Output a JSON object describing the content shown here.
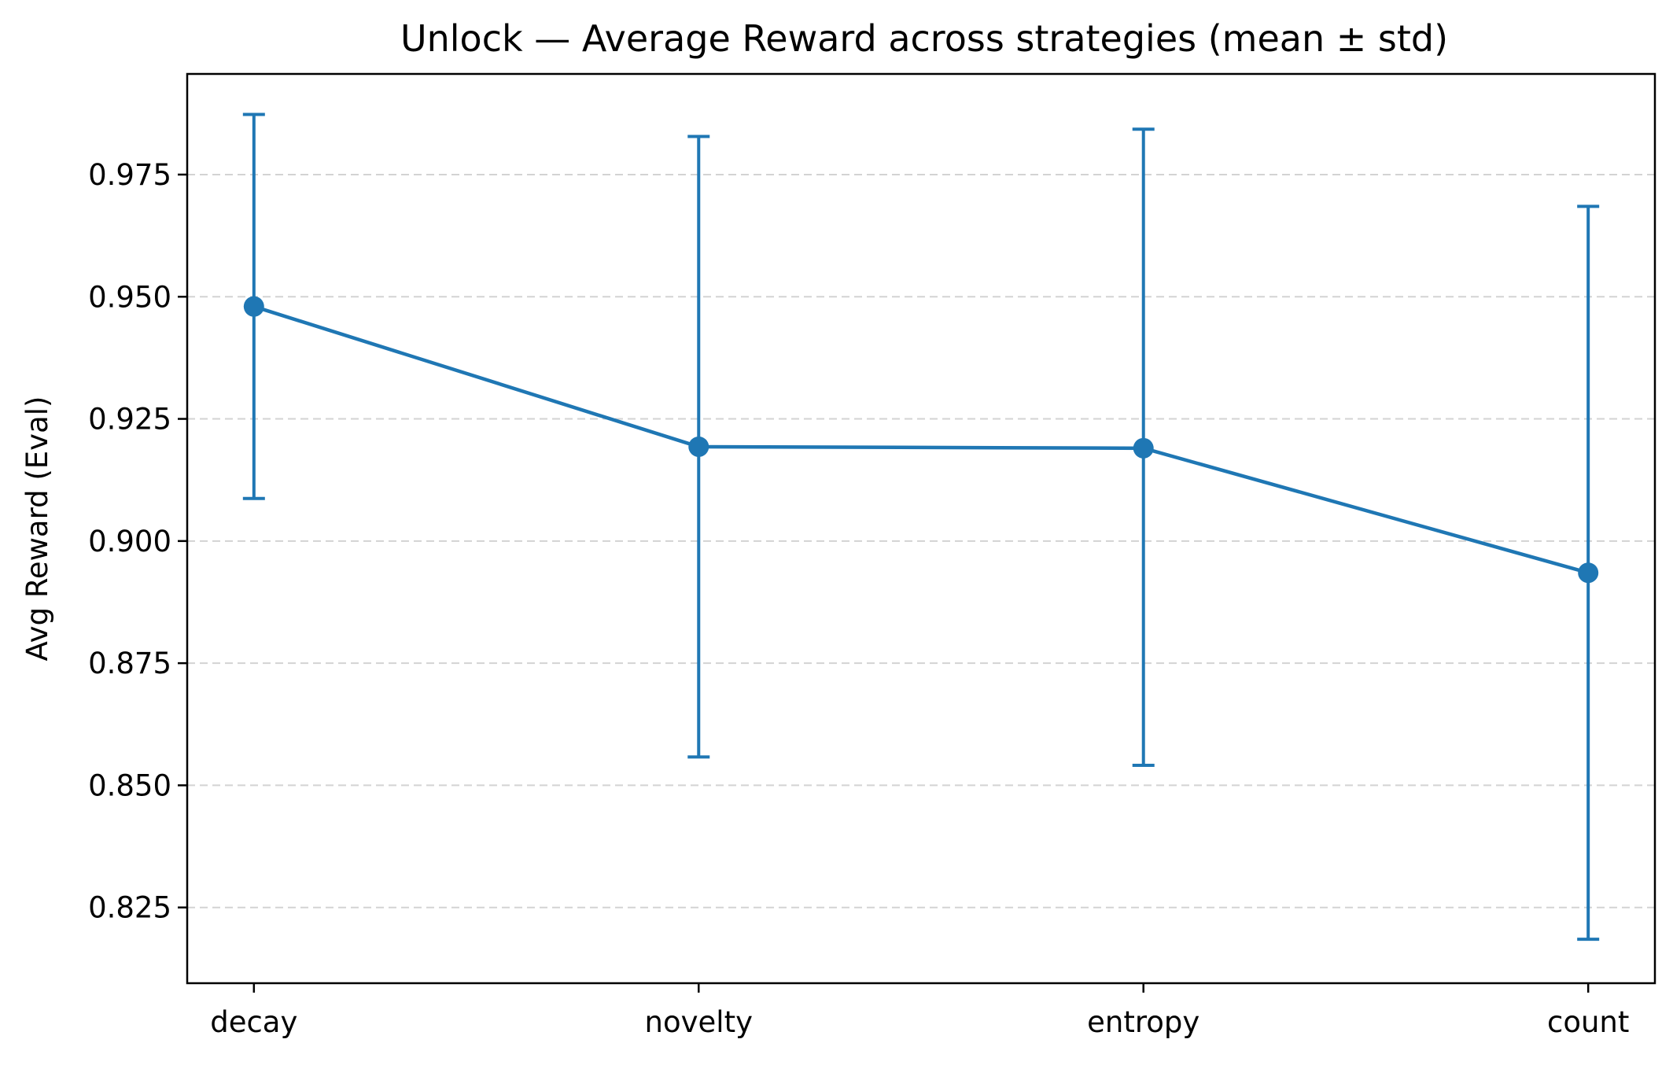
{
  "chart_data": {
    "type": "line",
    "title": "Unlock — Average Reward across strategies (mean ± std)",
    "xlabel": "",
    "ylabel": "Avg Reward (Eval)",
    "categories": [
      "decay",
      "novelty",
      "entropy",
      "count"
    ],
    "series": [
      {
        "values": [
          0.948,
          0.9193,
          0.919,
          0.8935
        ],
        "error_lower": [
          0.9087,
          0.8558,
          0.8541,
          0.8185
        ],
        "error_upper": [
          0.9873,
          0.9828,
          0.9843,
          0.9685
        ]
      }
    ],
    "ylim": [
      0.8095,
      0.9956
    ],
    "yticks": [
      0.825,
      0.85,
      0.875,
      0.9,
      0.925,
      0.95,
      0.975
    ],
    "ytick_labels": [
      "0.825",
      "0.850",
      "0.875",
      "0.900",
      "0.925",
      "0.950",
      "0.975"
    ],
    "grid": "y-dashed",
    "colors": {
      "series": "#1f77b4",
      "grid": "#d3d3d3",
      "axes": "#000000"
    }
  }
}
